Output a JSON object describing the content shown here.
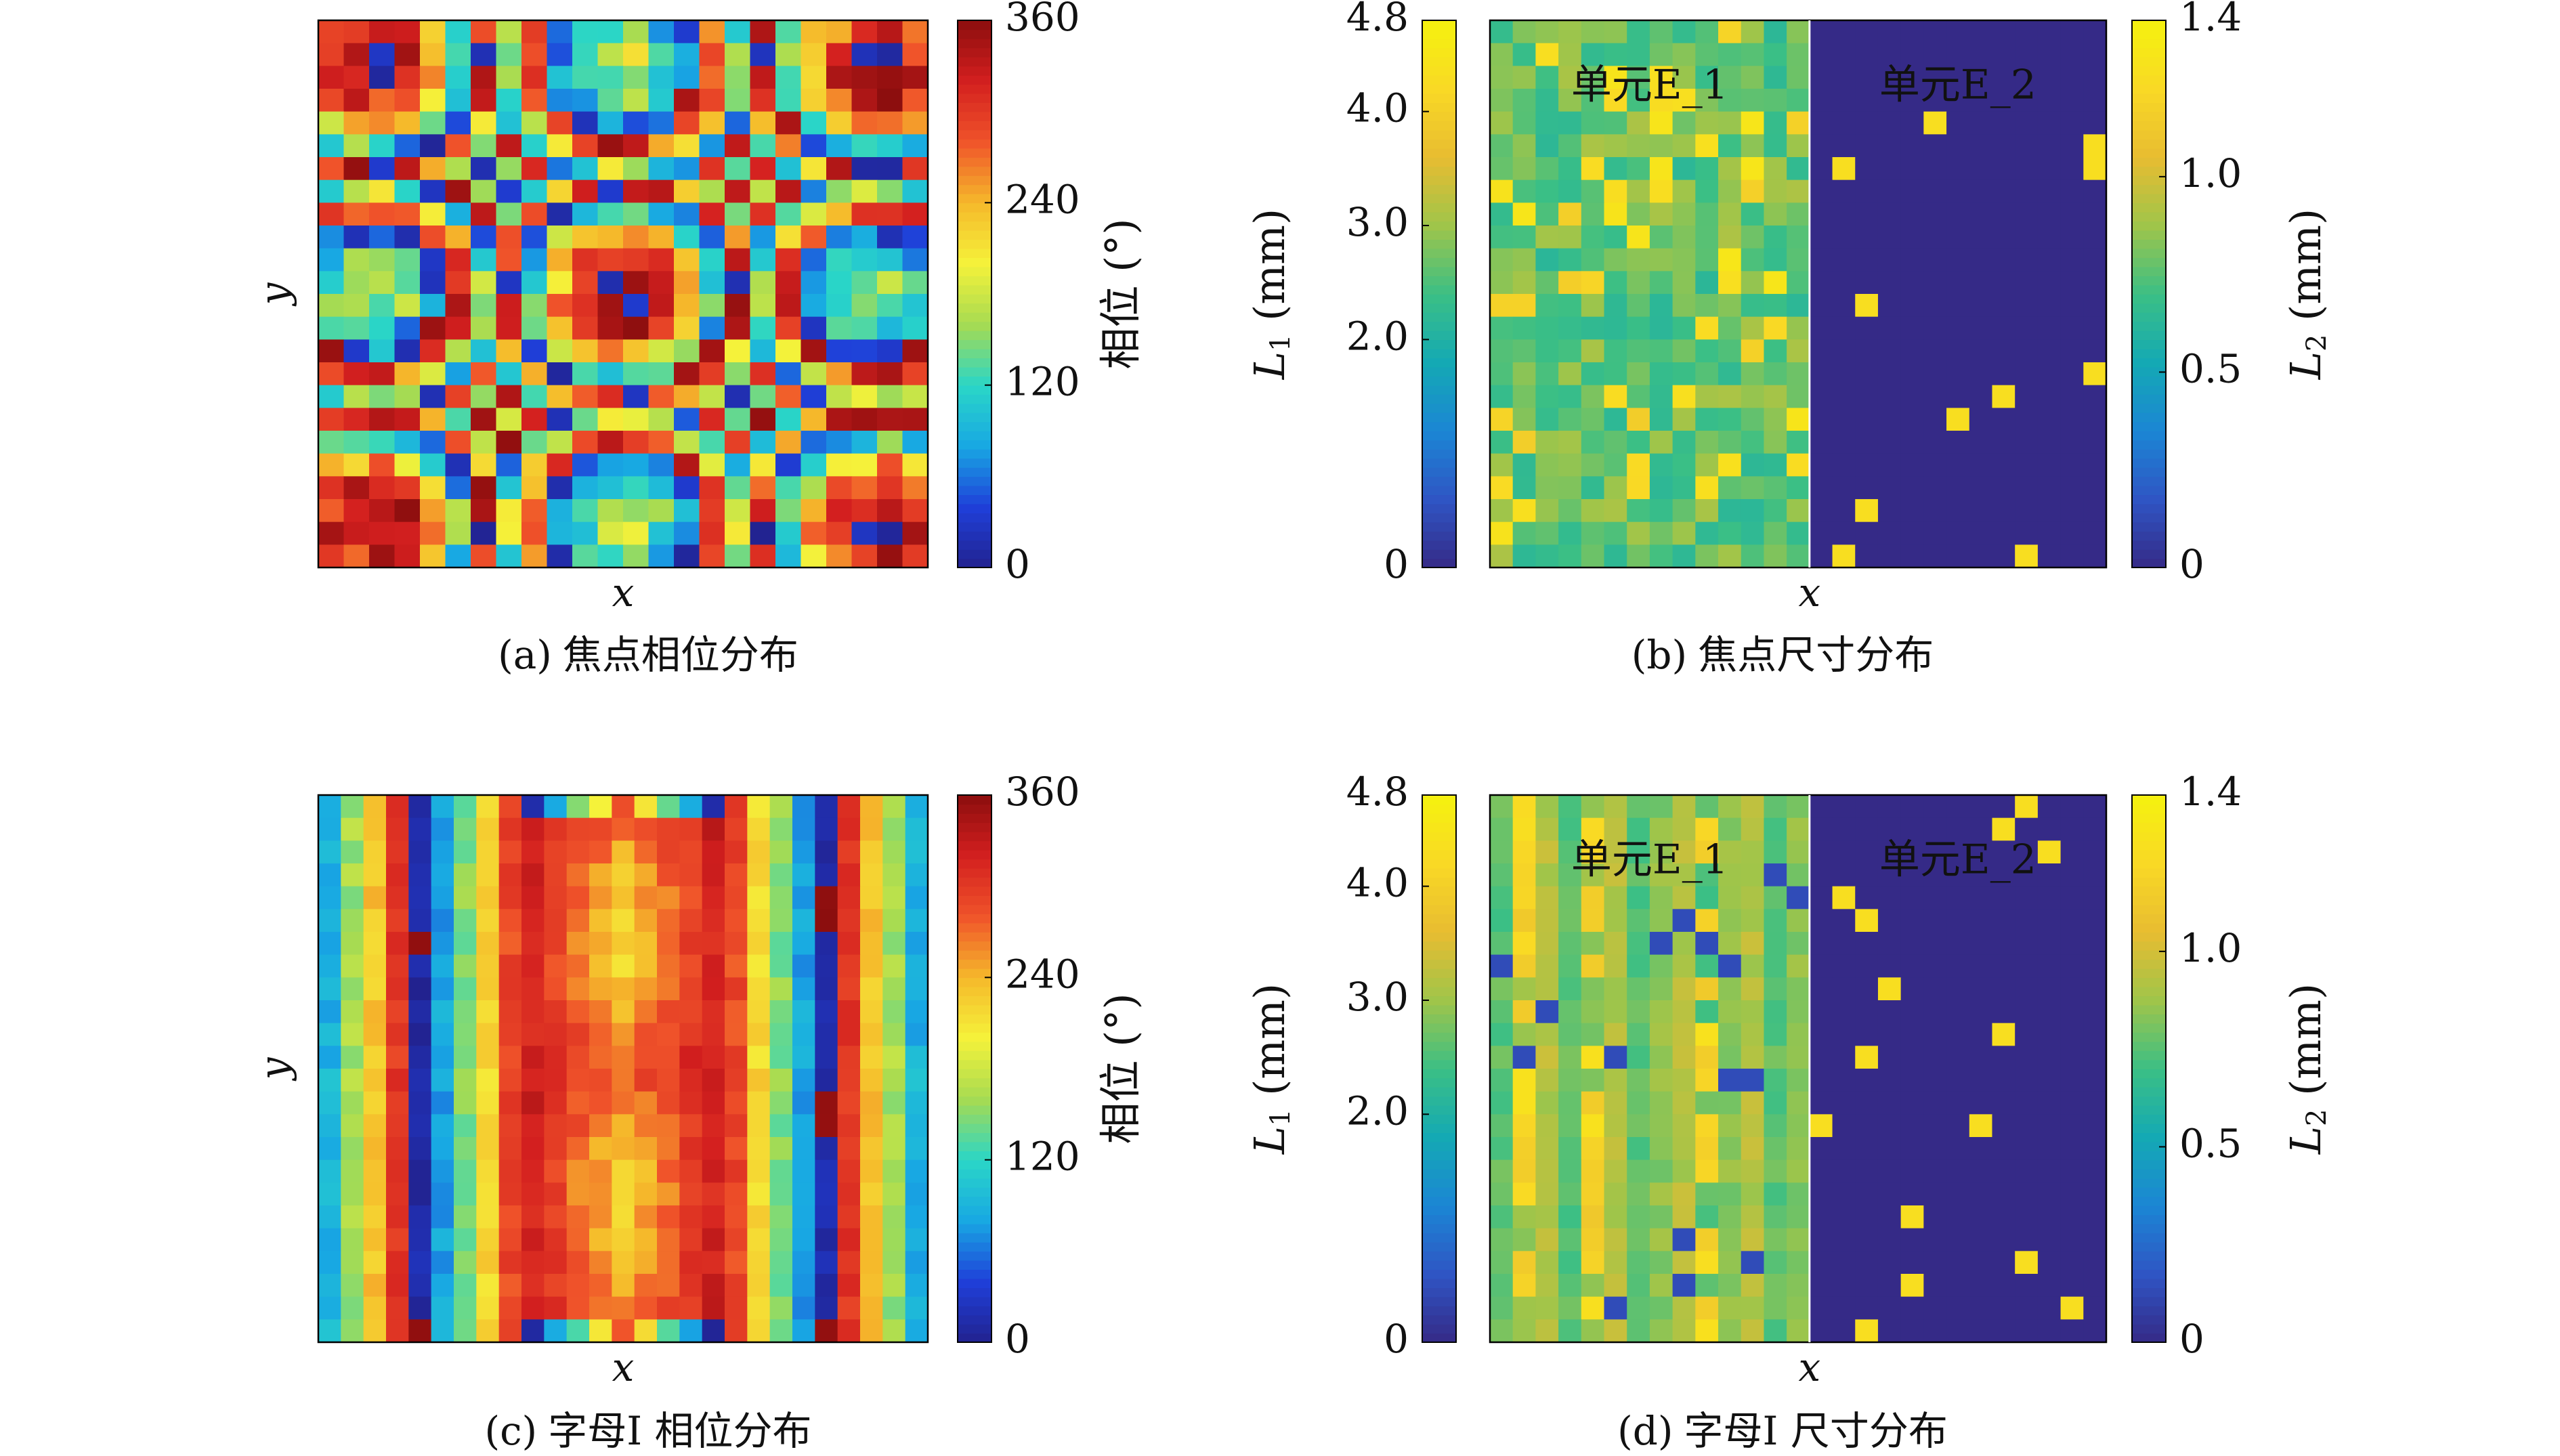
{
  "colors": {
    "phase_cmap": [
      "#22228f",
      "#1f3fd9",
      "#18a8e3",
      "#2ad6c7",
      "#a6db52",
      "#f5f23a",
      "#f5b92b",
      "#f0542a",
      "#d31f1f",
      "#8c0e0e"
    ],
    "size_cmap": [
      "#352a87",
      "#2f55c4",
      "#1b86d4",
      "#14a9b4",
      "#3bbf85",
      "#9fc54a",
      "#e8bc31",
      "#f9d925",
      "#f5f20e"
    ],
    "cell_border": "#000000"
  },
  "chart_data": [
    {
      "id": "a",
      "type": "heatmap",
      "caption_label": "(a)",
      "caption_text": "焦点相位分布",
      "xlabel": "x",
      "ylabel": "y",
      "grid_rows": 24,
      "grid_cols": 24,
      "pattern": "radial rings from center, phase wraps 0-360",
      "colorbar": {
        "label": "相位 (°)",
        "min": 0,
        "max": 360,
        "ticks": [
          "360",
          "240",
          "120",
          "0"
        ],
        "tick_values": [
          360,
          240,
          120,
          0
        ]
      }
    },
    {
      "id": "b",
      "type": "heatmap",
      "caption_label": "(b)",
      "caption_text": "焦点尺寸分布",
      "xlabel": "x",
      "grid_rows": 24,
      "grid_cols": 27,
      "region_labels": [
        "单元E_1",
        "单元E_2"
      ],
      "left_colorbar": {
        "label": "L1 (mm)",
        "label_base": "L",
        "label_sub": "1",
        "label_unit": "(mm)",
        "min": 0,
        "max": 4.8,
        "ticks": [
          "4.8",
          "4.0",
          "3.0",
          "2.0",
          "0"
        ],
        "tick_values": [
          4.8,
          4.0,
          3.0,
          2.0,
          0
        ]
      },
      "right_colorbar": {
        "label": "L2 (mm)",
        "label_base": "L",
        "label_sub": "2",
        "label_unit": "(mm)",
        "min": 0,
        "max": 1.4,
        "ticks": [
          "1.4",
          "1.0",
          "0.5",
          "0"
        ],
        "tick_values": [
          1.4,
          1.0,
          0.5,
          0
        ]
      }
    },
    {
      "id": "c",
      "type": "heatmap",
      "caption_label": "(c)",
      "caption_text": "字母I 相位分布",
      "xlabel": "x",
      "ylabel": "y",
      "grid_rows": 24,
      "grid_cols": 27,
      "pattern": "vertical bands around elongated central region",
      "colorbar": {
        "label": "相位 (°)",
        "min": 0,
        "max": 360,
        "ticks": [
          "360",
          "240",
          "120",
          "0"
        ],
        "tick_values": [
          360,
          240,
          120,
          0
        ]
      }
    },
    {
      "id": "d",
      "type": "heatmap",
      "caption_label": "(d)",
      "caption_text": "字母I 尺寸分布",
      "xlabel": "x",
      "grid_rows": 24,
      "grid_cols": 27,
      "region_labels": [
        "单元E_1",
        "单元E_2"
      ],
      "left_colorbar": {
        "label": "L1 (mm)",
        "label_base": "L",
        "label_sub": "1",
        "label_unit": "(mm)",
        "min": 0,
        "max": 4.8,
        "ticks": [
          "4.8",
          "4.0",
          "3.0",
          "2.0",
          "0"
        ],
        "tick_values": [
          4.8,
          4.0,
          3.0,
          2.0,
          0
        ]
      },
      "right_colorbar": {
        "label": "L2 (mm)",
        "label_base": "L",
        "label_sub": "2",
        "label_unit": "(mm)",
        "min": 0,
        "max": 1.4,
        "ticks": [
          "1.4",
          "1.0",
          "0.5",
          "0"
        ],
        "tick_values": [
          1.4,
          1.0,
          0.5,
          0
        ]
      }
    }
  ]
}
